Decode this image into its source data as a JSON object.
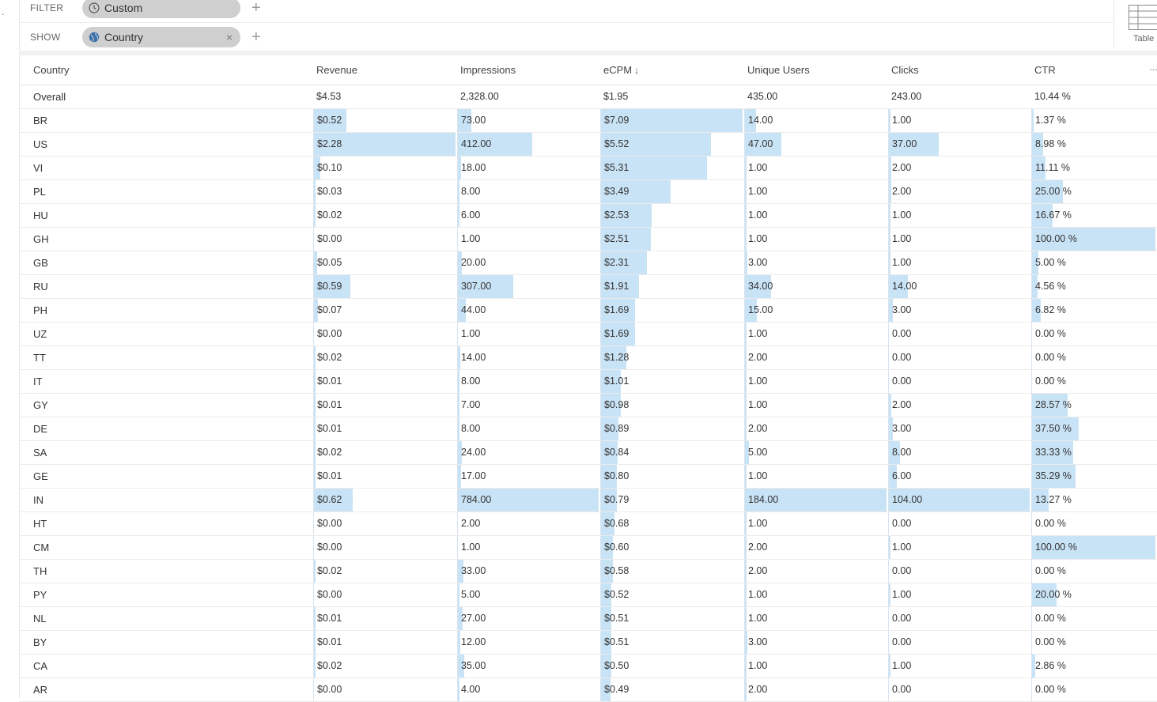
{
  "filter": {
    "label": "FILTER",
    "pill": "Custom"
  },
  "show": {
    "label": "SHOW",
    "pill": "Country",
    "close": "×"
  },
  "plus": "+",
  "viz": {
    "label": "Table"
  },
  "columns": [
    "Country",
    "Revenue",
    "Impressions",
    "eCPM",
    "Unique Users",
    "Clicks",
    "CTR"
  ],
  "sort_indicator": "↓",
  "more": "···",
  "overall": [
    "Overall",
    "$4.53",
    "2,328.00",
    "$1.95",
    "435.00",
    "243.00",
    "10.44 %"
  ],
  "rows": [
    [
      "BR",
      "$0.52",
      "73.00",
      "$7.09",
      "14.00",
      "1.00",
      "1.37 %"
    ],
    [
      "US",
      "$2.28",
      "412.00",
      "$5.52",
      "47.00",
      "37.00",
      "8.98 %"
    ],
    [
      "VI",
      "$0.10",
      "18.00",
      "$5.31",
      "1.00",
      "2.00",
      "11.11 %"
    ],
    [
      "PL",
      "$0.03",
      "8.00",
      "$3.49",
      "1.00",
      "2.00",
      "25.00 %"
    ],
    [
      "HU",
      "$0.02",
      "6.00",
      "$2.53",
      "1.00",
      "1.00",
      "16.67 %"
    ],
    [
      "GH",
      "$0.00",
      "1.00",
      "$2.51",
      "1.00",
      "1.00",
      "100.00 %"
    ],
    [
      "GB",
      "$0.05",
      "20.00",
      "$2.31",
      "3.00",
      "1.00",
      "5.00 %"
    ],
    [
      "RU",
      "$0.59",
      "307.00",
      "$1.91",
      "34.00",
      "14.00",
      "4.56 %"
    ],
    [
      "PH",
      "$0.07",
      "44.00",
      "$1.69",
      "15.00",
      "3.00",
      "6.82 %"
    ],
    [
      "UZ",
      "$0.00",
      "1.00",
      "$1.69",
      "1.00",
      "0.00",
      "0.00 %"
    ],
    [
      "TT",
      "$0.02",
      "14.00",
      "$1.28",
      "2.00",
      "0.00",
      "0.00 %"
    ],
    [
      "IT",
      "$0.01",
      "8.00",
      "$1.01",
      "1.00",
      "0.00",
      "0.00 %"
    ],
    [
      "GY",
      "$0.01",
      "7.00",
      "$0.98",
      "1.00",
      "2.00",
      "28.57 %"
    ],
    [
      "DE",
      "$0.01",
      "8.00",
      "$0.89",
      "2.00",
      "3.00",
      "37.50 %"
    ],
    [
      "SA",
      "$0.02",
      "24.00",
      "$0.84",
      "5.00",
      "8.00",
      "33.33 %"
    ],
    [
      "GE",
      "$0.01",
      "17.00",
      "$0.80",
      "1.00",
      "6.00",
      "35.29 %"
    ],
    [
      "IN",
      "$0.62",
      "784.00",
      "$0.79",
      "184.00",
      "104.00",
      "13.27 %"
    ],
    [
      "HT",
      "$0.00",
      "2.00",
      "$0.68",
      "1.00",
      "0.00",
      "0.00 %"
    ],
    [
      "CM",
      "$0.00",
      "1.00",
      "$0.60",
      "2.00",
      "1.00",
      "100.00 %"
    ],
    [
      "TH",
      "$0.02",
      "33.00",
      "$0.58",
      "2.00",
      "0.00",
      "0.00 %"
    ],
    [
      "PY",
      "$0.00",
      "5.00",
      "$0.52",
      "1.00",
      "1.00",
      "20.00 %"
    ],
    [
      "NL",
      "$0.01",
      "27.00",
      "$0.51",
      "1.00",
      "0.00",
      "0.00 %"
    ],
    [
      "BY",
      "$0.01",
      "12.00",
      "$0.51",
      "3.00",
      "0.00",
      "0.00 %"
    ],
    [
      "CA",
      "$0.02",
      "35.00",
      "$0.50",
      "1.00",
      "1.00",
      "2.86 %"
    ],
    [
      "AR",
      "$0.00",
      "4.00",
      "$0.49",
      "2.00",
      "0.00",
      "0.00 %"
    ]
  ]
}
